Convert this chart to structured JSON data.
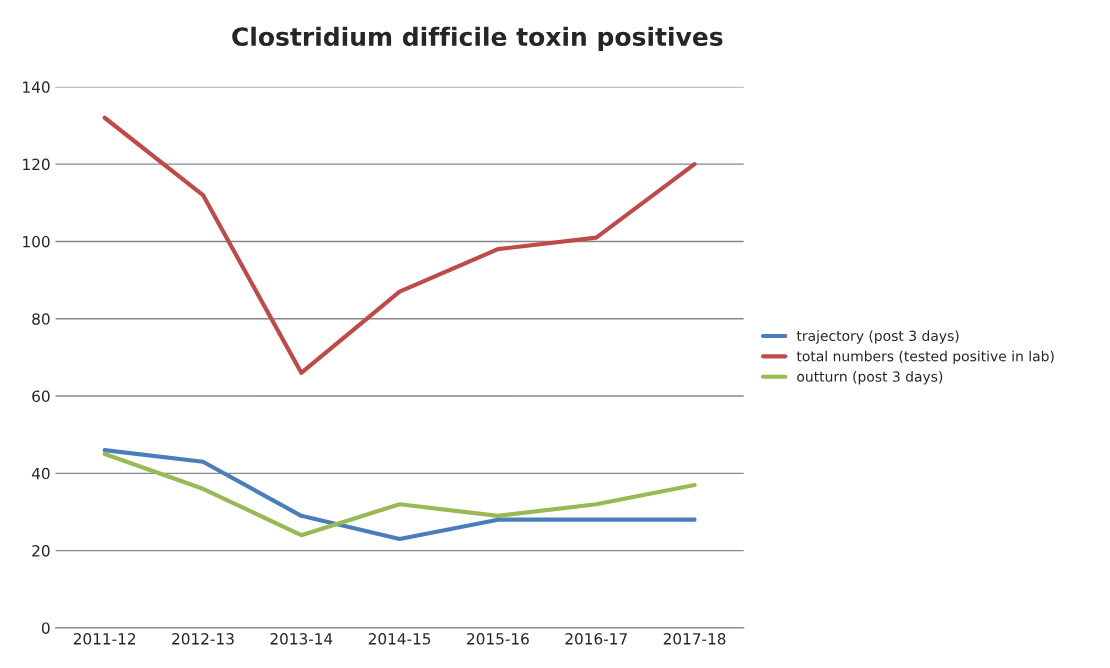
{
  "chart_data": {
    "type": "line",
    "title": "Clostridium difficile toxin positives",
    "categories": [
      "2011-12",
      "2012-13",
      "2013-14",
      "2014-15",
      "2015-16",
      "2016-17",
      "2017-18"
    ],
    "series": [
      {
        "name": "trajectory (post 3 days)",
        "color": "#4a7ebb",
        "values": [
          46,
          43,
          29,
          23,
          28,
          28,
          28
        ]
      },
      {
        "name": "total numbers (tested positive in lab)",
        "color": "#be4b48",
        "values": [
          132,
          112,
          66,
          87,
          98,
          101,
          120
        ]
      },
      {
        "name": "outturn (post 3 days)",
        "color": "#98b954",
        "values": [
          45,
          36,
          24,
          32,
          29,
          32,
          37
        ]
      }
    ],
    "ylim": [
      0,
      140
    ],
    "yticks": [
      0,
      20,
      40,
      60,
      80,
      100,
      120,
      140
    ],
    "grid": "y",
    "legend": "right",
    "marker": "none",
    "line_style": "solid"
  }
}
